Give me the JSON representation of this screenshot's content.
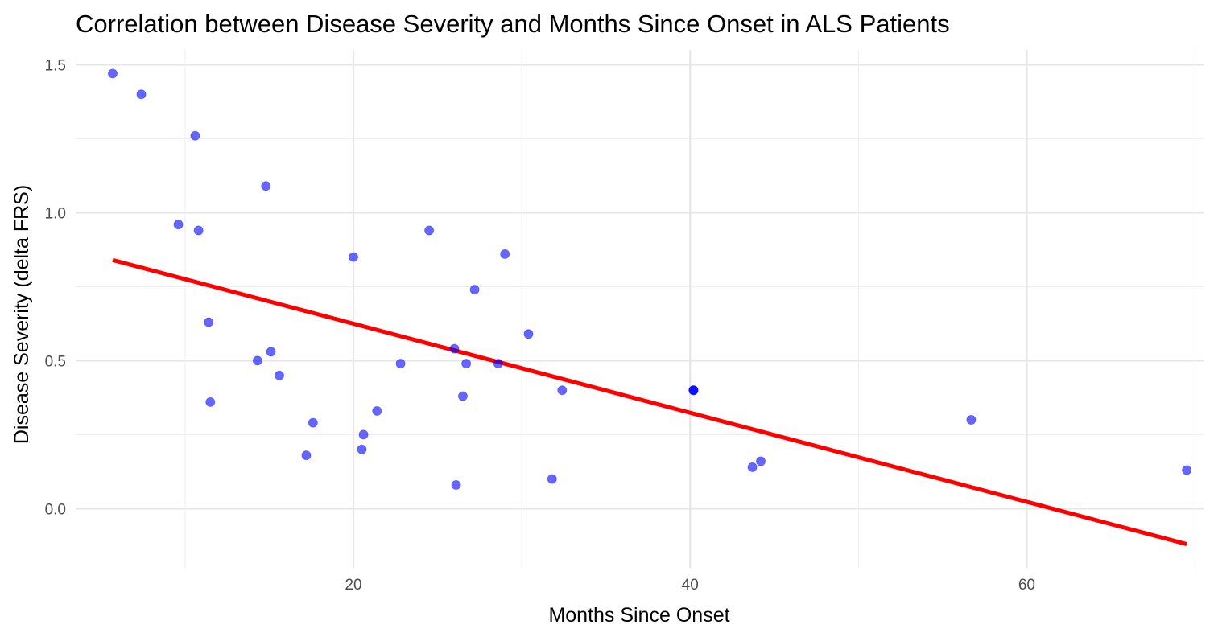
{
  "chart_data": {
    "type": "scatter",
    "title": "Correlation between Disease Severity and Months Since Onset in ALS Patients",
    "xlabel": "Months Since Onset",
    "ylabel": "Disease Severity (delta FRS)",
    "xlim": [
      3.5,
      70.5
    ],
    "ylim": [
      -0.2,
      1.55
    ],
    "x_ticks": [
      20,
      40,
      60
    ],
    "y_ticks": [
      0.0,
      0.5,
      1.0,
      1.5
    ],
    "x_tick_labels": [
      "20",
      "40",
      "60"
    ],
    "y_tick_labels": [
      "0.0",
      "0.5",
      "1.0",
      "1.5"
    ],
    "grid": true,
    "point_color": "#0000ff",
    "line_color": "#ff0000",
    "series": [
      {
        "type": "scatter",
        "points": [
          {
            "x": 5.7,
            "y": 1.47
          },
          {
            "x": 7.4,
            "y": 1.4
          },
          {
            "x": 10.6,
            "y": 1.26
          },
          {
            "x": 14.8,
            "y": 1.09
          },
          {
            "x": 9.6,
            "y": 0.96
          },
          {
            "x": 10.8,
            "y": 0.94
          },
          {
            "x": 24.5,
            "y": 0.94
          },
          {
            "x": 20.0,
            "y": 0.85
          },
          {
            "x": 29.0,
            "y": 0.86
          },
          {
            "x": 27.2,
            "y": 0.74
          },
          {
            "x": 11.4,
            "y": 0.63
          },
          {
            "x": 30.4,
            "y": 0.59
          },
          {
            "x": 26.0,
            "y": 0.54
          },
          {
            "x": 15.1,
            "y": 0.53
          },
          {
            "x": 14.3,
            "y": 0.5
          },
          {
            "x": 22.8,
            "y": 0.49
          },
          {
            "x": 26.7,
            "y": 0.49
          },
          {
            "x": 28.6,
            "y": 0.49
          },
          {
            "x": 15.6,
            "y": 0.45
          },
          {
            "x": 32.4,
            "y": 0.4
          },
          {
            "x": 40.2,
            "y": 0.4
          },
          {
            "x": 40.2,
            "y": 0.4
          },
          {
            "x": 40.2,
            "y": 0.4
          },
          {
            "x": 26.5,
            "y": 0.38
          },
          {
            "x": 11.5,
            "y": 0.36
          },
          {
            "x": 21.4,
            "y": 0.33
          },
          {
            "x": 56.7,
            "y": 0.3
          },
          {
            "x": 17.6,
            "y": 0.29
          },
          {
            "x": 20.6,
            "y": 0.25
          },
          {
            "x": 20.5,
            "y": 0.2
          },
          {
            "x": 17.2,
            "y": 0.18
          },
          {
            "x": 44.2,
            "y": 0.16
          },
          {
            "x": 43.7,
            "y": 0.14
          },
          {
            "x": 69.5,
            "y": 0.13
          },
          {
            "x": 31.8,
            "y": 0.1
          },
          {
            "x": 26.1,
            "y": 0.08
          }
        ]
      },
      {
        "type": "line",
        "points": [
          {
            "x": 5.7,
            "y": 0.84
          },
          {
            "x": 69.5,
            "y": -0.12
          }
        ]
      }
    ]
  }
}
